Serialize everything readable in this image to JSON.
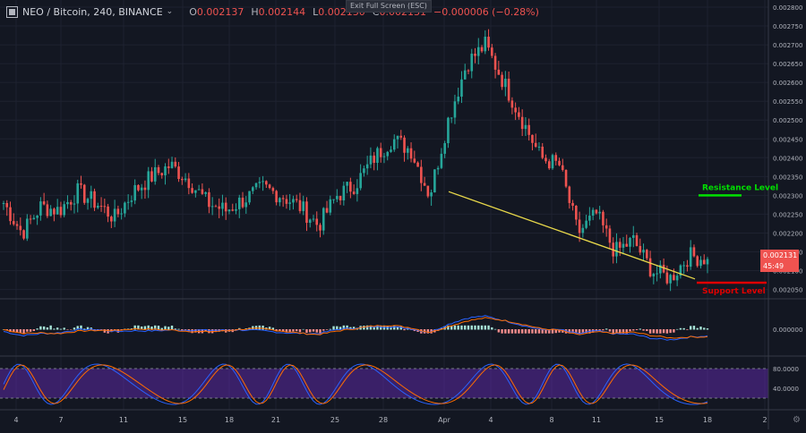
{
  "header": {
    "symbol_title": "NEO / Bitcoin, 240, BINANCE",
    "o_key": "O",
    "o_val": "0.002137",
    "h_key": "H",
    "h_val": "0.002144",
    "l_key": "L",
    "l_val": "0.002130",
    "c_key": "C",
    "c_val": "0.002131",
    "change": "−0.000006 (−0.28%)"
  },
  "exit_fullscreen_label": "Exit Full Screen (ESC)",
  "price_axis": {
    "ticks": [
      "0.002800",
      "0.002750",
      "0.002700",
      "0.002650",
      "0.002600",
      "0.002550",
      "0.002500",
      "0.002450",
      "0.002400",
      "0.002350",
      "0.002300",
      "0.002250",
      "0.002200",
      "0.002150",
      "0.002100",
      "0.002050"
    ],
    "last_price": "0.002131",
    "countdown": "45:49"
  },
  "annotations": {
    "resistance": "Resistance Level",
    "support": "Support Level",
    "resistance_price": 0.0023,
    "support_price": 0.002068
  },
  "macd_axis": {
    "tick": "0.000000"
  },
  "rsi_axis": {
    "ticks": [
      "80.0000",
      "40.0000"
    ]
  },
  "time_axis": {
    "labels": [
      "4",
      "7",
      "11",
      "15",
      "18",
      "21",
      "25",
      "28",
      "Apr",
      "4",
      "8",
      "11",
      "15",
      "18",
      "2"
    ]
  },
  "colors": {
    "up": "#26a69a",
    "down": "#ef5350",
    "bg": "#131722",
    "trend": "#e8d84a",
    "resistance": "#00e000",
    "support": "#e00000",
    "stoch_band": "#6a2dbf"
  },
  "chart_data": {
    "type": "candlestick",
    "symbol": "NEO / Bitcoin",
    "timeframe": "240",
    "exchange": "BINANCE",
    "last_close": 0.002131,
    "ylim": [
      0.00203,
      0.0028
    ],
    "waypoints_close": [
      0.00228,
      0.0022,
      0.00227,
      0.00226,
      0.00231,
      0.00228,
      0.00224,
      0.00231,
      0.00235,
      0.00238,
      0.00234,
      0.00228,
      0.00226,
      0.00229,
      0.00232,
      0.0023,
      0.00227,
      0.00222,
      0.0023,
      0.00233,
      0.0024,
      0.00245,
      0.00242,
      0.0023,
      0.0025,
      0.00265,
      0.0027,
      0.0026,
      0.0025,
      0.0024,
      0.00238,
      0.0022,
      0.00225,
      0.00215,
      0.00218,
      0.0021,
      0.00208,
      0.00214,
      0.002131
    ]
  }
}
